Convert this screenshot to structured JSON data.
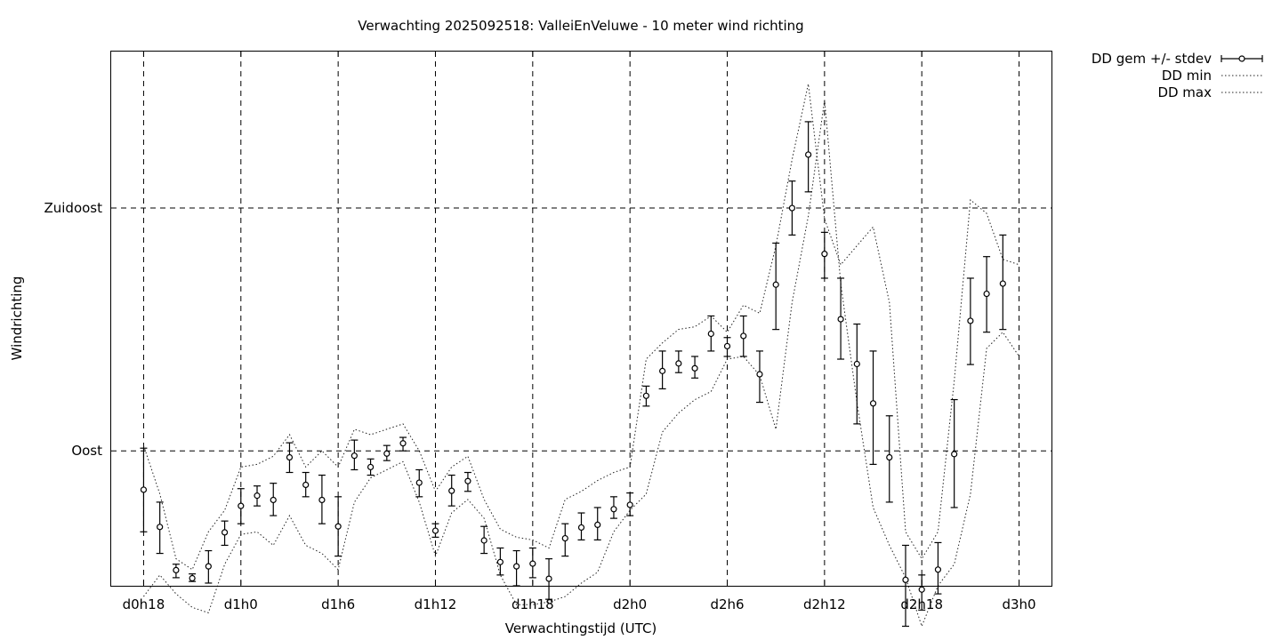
{
  "chart_data": {
    "type": "line",
    "title": "Verwachting 2025092518: ValleiEnVeluwe - 10 meter wind richting",
    "xlabel": "Verwachtingstijd (UTC)",
    "ylabel": "Windrichting",
    "grid": true,
    "legend_position": "outside-top-right",
    "x_unit": "hours since d0h18",
    "xlim": [
      -2,
      56
    ],
    "ylim": [
      65,
      164
    ],
    "x_ticks": [
      {
        "x": 0,
        "label": "d0h18"
      },
      {
        "x": 6,
        "label": "d1h0"
      },
      {
        "x": 12,
        "label": "d1h6"
      },
      {
        "x": 18,
        "label": "d1h12"
      },
      {
        "x": 24,
        "label": "d1h18"
      },
      {
        "x": 30,
        "label": "d2h0"
      },
      {
        "x": 36,
        "label": "d2h6"
      },
      {
        "x": 42,
        "label": "d2h12"
      },
      {
        "x": 48,
        "label": "d2h18"
      },
      {
        "x": 54,
        "label": "d3h0"
      }
    ],
    "y_ticks": [
      {
        "y": 90,
        "label": "Oost"
      },
      {
        "y": 135,
        "label": "Zuidoost"
      }
    ],
    "legend": [
      {
        "label": "DD gem +/- stdev",
        "style": "errorbar"
      },
      {
        "label": "DD min",
        "style": "dotted"
      },
      {
        "label": "DD max",
        "style": "dotted"
      }
    ],
    "series": [
      {
        "name": "DD gem +/- stdev",
        "x": [
          0,
          1,
          2,
          3,
          4,
          5,
          6,
          7,
          8,
          9,
          10,
          11,
          12,
          13,
          14,
          15,
          16,
          17,
          18,
          19,
          20,
          21,
          22,
          23,
          24,
          25,
          26,
          27,
          28,
          29,
          30,
          31,
          32,
          33,
          34,
          35,
          36,
          37,
          38,
          39,
          40,
          41,
          42,
          43,
          44,
          45,
          46,
          47,
          48,
          49,
          50,
          51,
          52,
          53,
          54
        ],
        "mean": [
          82.8,
          75.9,
          67.9,
          66.4,
          68.6,
          74.9,
          79.8,
          81.7,
          80.9,
          88.8,
          83.7,
          80.9,
          76.0,
          89.1,
          87.0,
          89.5,
          91.4,
          84.1,
          75.2,
          82.6,
          84.4,
          73.4,
          69.4,
          68.6,
          69.1,
          66.3,
          73.8,
          75.8,
          76.3,
          79.2,
          80.0,
          100.2,
          104.8,
          106.2,
          105.3,
          111.7,
          109.4,
          111.3,
          104.2,
          120.8,
          135.0,
          144.9,
          126.5,
          114.4,
          106.1,
          98.8,
          88.8,
          66.1,
          64.3,
          68.0,
          89.4,
          114.1,
          119.1,
          121.0
        ],
        "x_mean": [
          0,
          1,
          2,
          3,
          4,
          5,
          6,
          7,
          8,
          9,
          10,
          11,
          12,
          13,
          14,
          15,
          16,
          17,
          18,
          19,
          20,
          21,
          22,
          23,
          24,
          25,
          26,
          27,
          28,
          29,
          30,
          31,
          32,
          33,
          34,
          35,
          36,
          37,
          38,
          39,
          40,
          41,
          42,
          43,
          44,
          45,
          46,
          47,
          48,
          49,
          50,
          51,
          52,
          53
        ],
        "y_low": [
          75.0,
          71.0,
          66.5,
          65.8,
          65.5,
          72.5,
          76.5,
          79.8,
          78.0,
          86.0,
          81.5,
          76.5,
          70.5,
          86.5,
          85.5,
          88.2,
          90.0,
          81.5,
          74.0,
          79.8,
          82.5,
          71.0,
          67.0,
          65.0,
          66.5,
          62.5,
          70.5,
          73.5,
          73.5,
          77.5,
          78.0,
          98.3,
          101.5,
          104.5,
          103.5,
          108.5,
          107.5,
          107.5,
          99.0,
          112.5,
          130.0,
          138.0,
          122.0,
          107.0,
          95.0,
          87.5,
          80.5,
          57.5,
          60.5,
          63.5,
          79.5,
          106.0,
          112.0,
          112.5
        ],
        "y_high": [
          90.5,
          80.5,
          69.0,
          67.2,
          71.5,
          77.0,
          83.0,
          83.5,
          84.0,
          91.5,
          86.0,
          85.5,
          81.5,
          92.0,
          88.5,
          91.0,
          92.5,
          86.5,
          76.5,
          85.5,
          86.0,
          76.0,
          72.0,
          71.5,
          72.0,
          70.0,
          76.5,
          78.5,
          79.5,
          81.5,
          82.2,
          102.0,
          108.5,
          108.5,
          107.5,
          115.0,
          111.0,
          115.0,
          108.5,
          128.5,
          140.0,
          151.0,
          130.5,
          122.0,
          113.5,
          108.5,
          96.5,
          72.5,
          67.0,
          73.0,
          99.5,
          122.0,
          126.0,
          130.0
        ]
      },
      {
        "name": "DD min",
        "x": [
          0,
          1,
          2,
          3,
          4,
          5,
          6,
          7,
          8,
          9,
          10,
          11,
          12,
          13,
          14,
          15,
          16,
          17,
          18,
          19,
          20,
          21,
          22,
          23,
          24,
          25,
          26,
          27,
          28,
          29,
          30,
          31,
          32,
          33,
          34,
          35,
          36,
          37,
          38,
          39,
          40,
          41,
          42,
          43,
          44,
          45,
          46,
          47,
          48,
          49,
          50,
          51,
          52,
          53,
          54
        ],
        "y": [
          63.0,
          67.0,
          63.5,
          61.0,
          60.0,
          69.0,
          74.5,
          75.0,
          72.5,
          78.0,
          72.5,
          71.0,
          68.0,
          80.5,
          85.0,
          86.5,
          88.0,
          80.5,
          70.5,
          78.5,
          81.0,
          77.5,
          67.0,
          61.5,
          61.5,
          62.0,
          63.0,
          65.5,
          67.5,
          75.0,
          79.0,
          82.0,
          93.5,
          97.0,
          99.5,
          101.0,
          107.0,
          107.5,
          104.0,
          94.0,
          117.5,
          133.5,
          155.0,
          121.0,
          99.0,
          79.5,
          72.5,
          66.5,
          57.5,
          65.0,
          69.0,
          82.0,
          109.0,
          112.0,
          107.5
        ]
      },
      {
        "name": "DD max",
        "x": [
          0,
          1,
          2,
          3,
          4,
          5,
          6,
          7,
          8,
          9,
          10,
          11,
          12,
          13,
          14,
          15,
          16,
          17,
          18,
          19,
          20,
          21,
          22,
          23,
          24,
          25,
          26,
          27,
          28,
          29,
          30,
          31,
          32,
          33,
          34,
          35,
          36,
          37,
          38,
          39,
          40,
          41,
          42,
          43,
          44,
          45,
          46,
          47,
          48,
          49,
          50,
          51,
          52,
          53,
          54
        ],
        "y": [
          91.0,
          82.0,
          70.0,
          68.0,
          75.0,
          79.0,
          87.0,
          87.5,
          89.0,
          93.0,
          87.0,
          90.0,
          87.0,
          94.0,
          93.0,
          94.0,
          95.0,
          90.0,
          82.5,
          87.0,
          89.0,
          81.0,
          75.5,
          74.0,
          73.5,
          72.0,
          81.0,
          82.5,
          84.5,
          86.0,
          87.0,
          107.0,
          110.0,
          112.5,
          113.0,
          115.0,
          112.0,
          117.0,
          115.5,
          128.0,
          144.0,
          158.0,
          133.0,
          124.5,
          128.0,
          131.5,
          117.5,
          75.0,
          70.0,
          75.0,
          103.0,
          136.5,
          134.0,
          125.5,
          124.5
        ]
      }
    ]
  }
}
